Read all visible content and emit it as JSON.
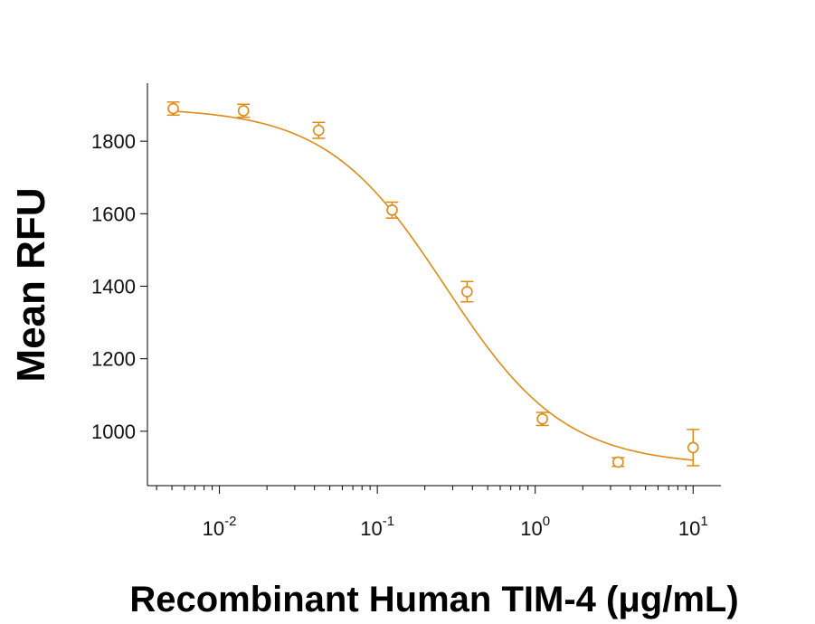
{
  "chart_data": {
    "type": "scatter",
    "title": "",
    "xlabel": "Recombinant Human TIM-4 (μg/mL)",
    "ylabel": "Mean RFU",
    "x_scale": "log",
    "xlim": [
      0.0035,
      15
    ],
    "ylim": [
      850,
      1960
    ],
    "x_ticks": [
      {
        "base": "10",
        "exp": "-2",
        "value": 0.01
      },
      {
        "base": "10",
        "exp": "-1",
        "value": 0.1
      },
      {
        "base": "10",
        "exp": "0",
        "value": 1
      },
      {
        "base": "10",
        "exp": "1",
        "value": 10
      }
    ],
    "y_ticks": [
      {
        "label": "1000",
        "value": 1000
      },
      {
        "label": "1200",
        "value": 1200
      },
      {
        "label": "1400",
        "value": 1400
      },
      {
        "label": "1600",
        "value": 1600
      },
      {
        "label": "1800",
        "value": 1800
      }
    ],
    "grid": false,
    "color": "#E08A16",
    "series": [
      {
        "points": [
          {
            "x": 0.0051,
            "y": 1890,
            "err": 18
          },
          {
            "x": 0.0142,
            "y": 1884,
            "err": 18
          },
          {
            "x": 0.0425,
            "y": 1830,
            "err": 22
          },
          {
            "x": 0.124,
            "y": 1610,
            "err": 22
          },
          {
            "x": 0.37,
            "y": 1385,
            "err": 28
          },
          {
            "x": 1.11,
            "y": 1034,
            "err": 18
          },
          {
            "x": 3.35,
            "y": 915,
            "err": 12
          },
          {
            "x": 10,
            "y": 955,
            "err": 50
          }
        ],
        "fit": {
          "model": "4PL",
          "top": 1893,
          "bottom": 905,
          "ec50": 0.27,
          "hill": 1.15
        }
      }
    ]
  }
}
